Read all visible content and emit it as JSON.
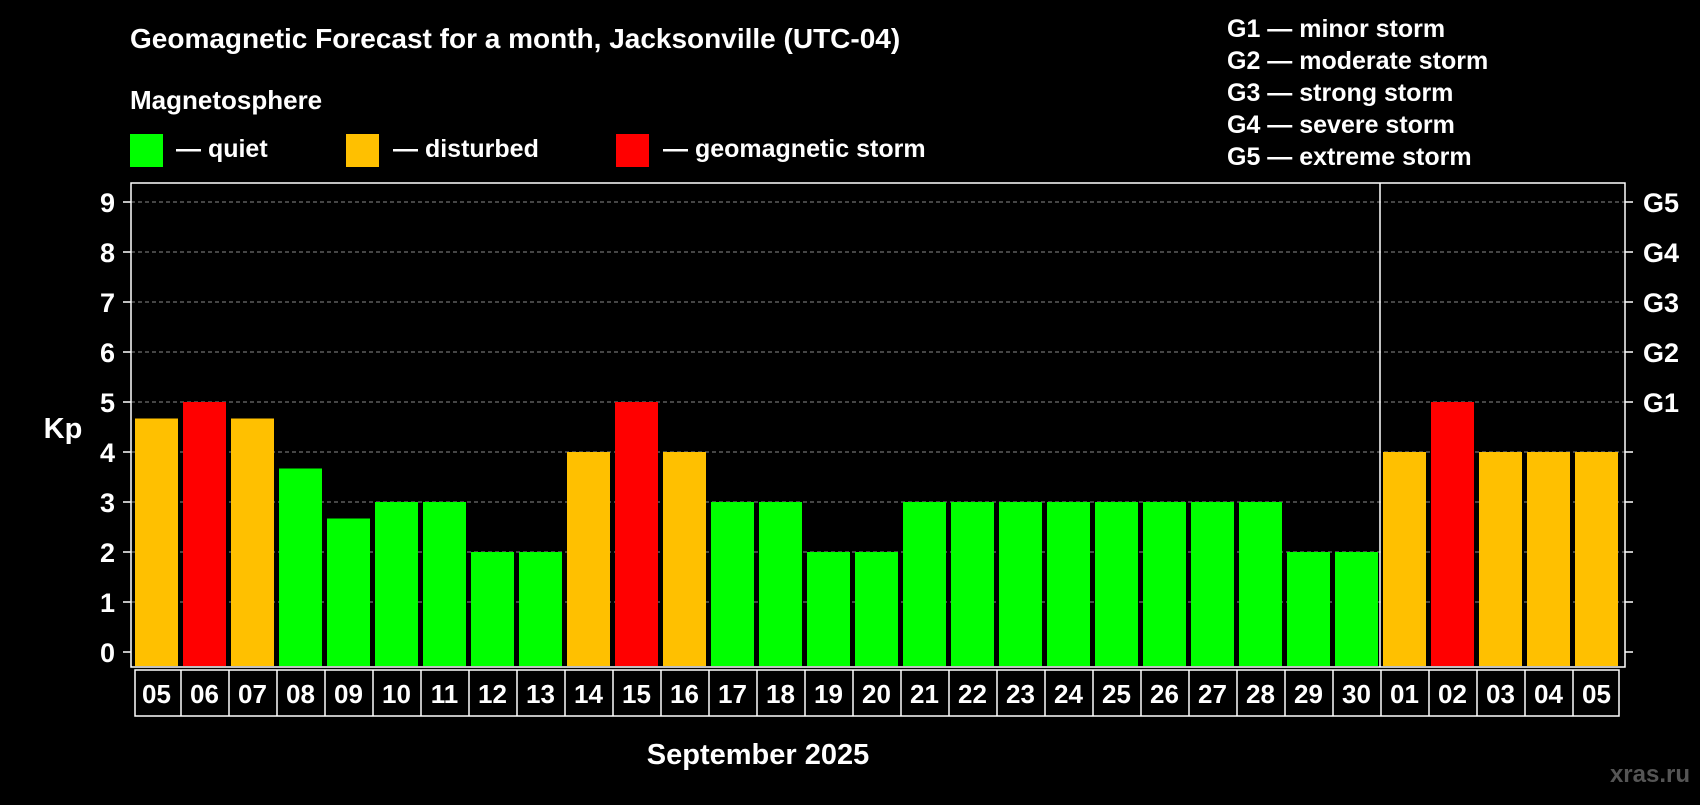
{
  "title": "Geomagnetic Forecast for a month, Jacksonville (UTC-04)",
  "legend": {
    "heading": "Magnetosphere",
    "items": [
      {
        "label": "— quiet",
        "color": "#00ff00"
      },
      {
        "label": "— disturbed",
        "color": "#ffc000"
      },
      {
        "label": "— geomagnetic storm",
        "color": "#ff0000"
      }
    ]
  },
  "storm_scale": [
    "G1 — minor storm",
    "G2 — moderate storm",
    "G3 — strong storm",
    "G4 — severe storm",
    "G5 — extreme storm"
  ],
  "watermark": "xras.ru",
  "chart_data": {
    "type": "bar",
    "ylabel": "Kp",
    "xlabel": "September 2025",
    "ylim": [
      0,
      9
    ],
    "yticks": [
      "0",
      "1",
      "2",
      "3",
      "4",
      "5",
      "6",
      "7",
      "8",
      "9"
    ],
    "right_ticks": [
      {
        "value": 5,
        "label": "G1"
      },
      {
        "value": 6,
        "label": "G2"
      },
      {
        "value": 7,
        "label": "G3"
      },
      {
        "value": 8,
        "label": "G4"
      },
      {
        "value": 9,
        "label": "G5"
      }
    ],
    "grid": true,
    "month_divider_after": "30",
    "categories": [
      "05",
      "06",
      "07",
      "08",
      "09",
      "10",
      "11",
      "12",
      "13",
      "14",
      "15",
      "16",
      "17",
      "18",
      "19",
      "20",
      "21",
      "22",
      "23",
      "24",
      "25",
      "26",
      "27",
      "28",
      "29",
      "30",
      "01",
      "02",
      "03",
      "04",
      "05"
    ],
    "values": [
      4.67,
      5,
      4.67,
      3.67,
      2.67,
      3,
      3,
      2,
      2,
      4,
      5,
      4,
      3,
      3,
      2,
      2,
      3,
      3,
      3,
      3,
      3,
      3,
      3,
      3,
      2,
      2,
      4,
      5,
      4,
      4,
      4
    ],
    "levels": [
      "disturbed",
      "storm",
      "disturbed",
      "quiet",
      "quiet",
      "quiet",
      "quiet",
      "quiet",
      "quiet",
      "disturbed",
      "storm",
      "disturbed",
      "quiet",
      "quiet",
      "quiet",
      "quiet",
      "quiet",
      "quiet",
      "quiet",
      "quiet",
      "quiet",
      "quiet",
      "quiet",
      "quiet",
      "quiet",
      "quiet",
      "disturbed",
      "storm",
      "disturbed",
      "disturbed",
      "disturbed"
    ],
    "level_colors": {
      "quiet": "#00ff00",
      "disturbed": "#ffc000",
      "storm": "#ff0000"
    }
  }
}
